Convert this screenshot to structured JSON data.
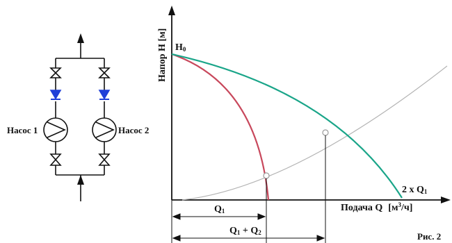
{
  "schematic": {
    "pump1_label": "Насос 1",
    "pump2_label": "Насос 2"
  },
  "graph": {
    "ylabel": "Напор H [м]",
    "h0_label": "H",
    "h0_sub": "0",
    "xlabel": "Подача Q",
    "xunit_pre": "[м",
    "xunit_sup": "3",
    "xunit_post": "/ч]",
    "curve_label": "2 x Q",
    "curve_sub": "1",
    "q1_label": "Q",
    "q1_sub": "1",
    "qsum_a": "Q",
    "qsum_a_sub": "1",
    "qsum_mid": " + Q",
    "qsum_b_sub": "2"
  },
  "caption": "Рис. 2",
  "colors": {
    "single_pump_curve": "#c8485c",
    "parallel_pumps_curve": "#1aa589",
    "system_curve": "#b3b3b3",
    "check_valve": "#1f3fd8"
  }
}
